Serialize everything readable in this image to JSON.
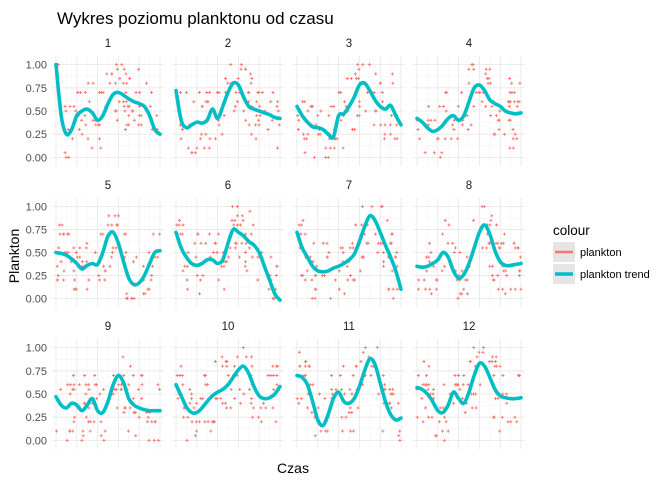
{
  "chart_data": {
    "type": "line",
    "title": "Wykres poziomu planktonu od czasu",
    "xlabel": "Czas",
    "ylabel": "Plankton",
    "ylim": [
      0,
      1
    ],
    "y_ticks": [
      "0.00",
      "0.25",
      "0.50",
      "0.75",
      "1.00"
    ],
    "x_ticks_shown": false,
    "grid": true,
    "legend": {
      "title": "colour",
      "position": "right",
      "entries": [
        {
          "name": "plankton",
          "color": "#F8766D"
        },
        {
          "name": "plankton trend",
          "color": "#00BFC4"
        }
      ]
    },
    "x": [
      0,
      0.05,
      0.1,
      0.15,
      0.2,
      0.25,
      0.3,
      0.35,
      0.4,
      0.45,
      0.5,
      0.55,
      0.6,
      0.65,
      0.7,
      0.75,
      0.8,
      0.85,
      0.9,
      0.95,
      1.0
    ],
    "panels": [
      {
        "label": "1",
        "trend": [
          1.0,
          0.45,
          0.25,
          0.3,
          0.45,
          0.5,
          0.52,
          0.48,
          0.4,
          0.45,
          0.58,
          0.68,
          0.7,
          0.67,
          0.63,
          0.6,
          0.58,
          0.55,
          0.45,
          0.3,
          0.25
        ]
      },
      {
        "label": "2",
        "trend": [
          0.72,
          0.4,
          0.32,
          0.35,
          0.38,
          0.37,
          0.4,
          0.52,
          0.42,
          0.55,
          0.7,
          0.8,
          0.78,
          0.65,
          0.55,
          0.52,
          0.5,
          0.48,
          0.46,
          0.43,
          0.42
        ]
      },
      {
        "label": "3",
        "trend": [
          0.55,
          0.45,
          0.38,
          0.33,
          0.32,
          0.3,
          0.25,
          0.22,
          0.45,
          0.47,
          0.55,
          0.65,
          0.78,
          0.8,
          0.72,
          0.62,
          0.55,
          0.52,
          0.56,
          0.45,
          0.35
        ]
      },
      {
        "label": "4",
        "trend": [
          0.42,
          0.38,
          0.32,
          0.28,
          0.3,
          0.35,
          0.42,
          0.45,
          0.4,
          0.45,
          0.6,
          0.75,
          0.78,
          0.72,
          0.62,
          0.58,
          0.55,
          0.5,
          0.48,
          0.47,
          0.48
        ]
      },
      {
        "label": "5",
        "trend": [
          0.5,
          0.49,
          0.47,
          0.43,
          0.38,
          0.32,
          0.36,
          0.38,
          0.37,
          0.5,
          0.68,
          0.72,
          0.6,
          0.4,
          0.22,
          0.15,
          0.17,
          0.25,
          0.38,
          0.5,
          0.52
        ]
      },
      {
        "label": "6",
        "trend": [
          0.72,
          0.55,
          0.45,
          0.38,
          0.36,
          0.38,
          0.42,
          0.42,
          0.38,
          0.42,
          0.6,
          0.75,
          0.72,
          0.68,
          0.62,
          0.58,
          0.5,
          0.35,
          0.2,
          0.05,
          -0.02
        ]
      },
      {
        "label": "7",
        "trend": [
          0.72,
          0.55,
          0.45,
          0.35,
          0.3,
          0.29,
          0.3,
          0.33,
          0.35,
          0.38,
          0.42,
          0.48,
          0.62,
          0.78,
          0.9,
          0.85,
          0.72,
          0.58,
          0.45,
          0.3,
          0.1
        ]
      },
      {
        "label": "8",
        "trend": [
          0.35,
          0.34,
          0.35,
          0.38,
          0.42,
          0.5,
          0.45,
          0.3,
          0.22,
          0.26,
          0.38,
          0.55,
          0.72,
          0.8,
          0.7,
          0.52,
          0.4,
          0.36,
          0.36,
          0.37,
          0.38
        ]
      },
      {
        "label": "9",
        "trend": [
          0.47,
          0.38,
          0.35,
          0.4,
          0.38,
          0.32,
          0.38,
          0.45,
          0.32,
          0.3,
          0.42,
          0.6,
          0.7,
          0.62,
          0.45,
          0.38,
          0.35,
          0.33,
          0.32,
          0.32,
          0.32
        ]
      },
      {
        "label": "10",
        "trend": [
          0.6,
          0.48,
          0.36,
          0.3,
          0.3,
          0.35,
          0.42,
          0.48,
          0.52,
          0.55,
          0.6,
          0.68,
          0.76,
          0.8,
          0.72,
          0.58,
          0.48,
          0.45,
          0.46,
          0.5,
          0.58
        ]
      },
      {
        "label": "11",
        "trend": [
          0.7,
          0.68,
          0.6,
          0.42,
          0.22,
          0.16,
          0.28,
          0.45,
          0.52,
          0.42,
          0.4,
          0.45,
          0.58,
          0.75,
          0.88,
          0.82,
          0.62,
          0.42,
          0.28,
          0.22,
          0.24
        ]
      },
      {
        "label": "12",
        "trend": [
          0.57,
          0.55,
          0.5,
          0.42,
          0.32,
          0.3,
          0.38,
          0.52,
          0.45,
          0.4,
          0.52,
          0.7,
          0.83,
          0.8,
          0.68,
          0.55,
          0.48,
          0.46,
          0.45,
          0.45,
          0.46
        ]
      }
    ]
  }
}
